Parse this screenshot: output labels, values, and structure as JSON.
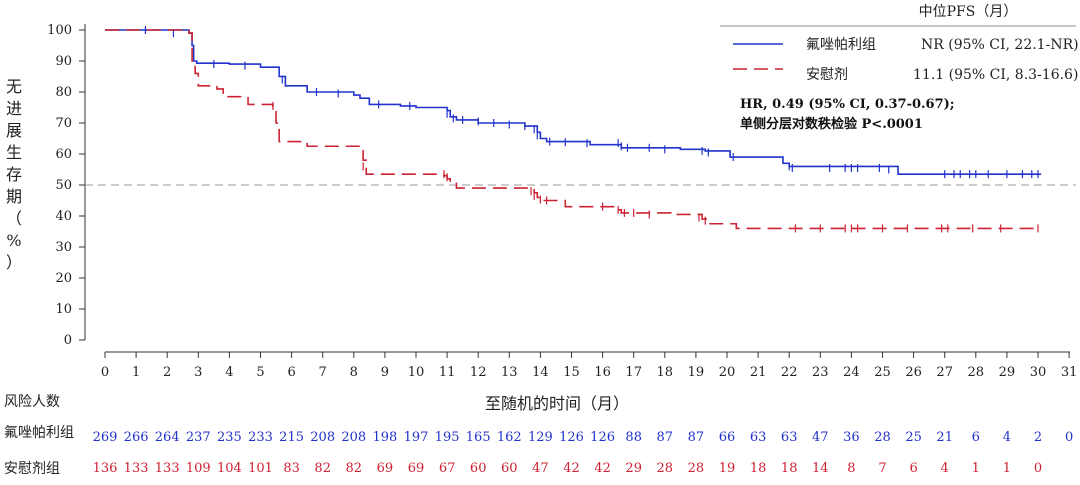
{
  "colors": {
    "treatment": "#2233cc",
    "placebo": "#cc2233",
    "ref_line": "#999999",
    "axis": "#333333"
  },
  "legend": {
    "header": "中位PFS（月）",
    "items": [
      {
        "label": "氟唑帕利组",
        "stat": "NR (95% CI, 22.1-NR)",
        "style": "solid",
        "color": "#2233cc"
      },
      {
        "label": "安慰剂",
        "stat": "11.1 (95% CI, 8.3-16.6)",
        "style": "dashed",
        "color": "#cc2233"
      }
    ]
  },
  "annotation": {
    "line1": "HR, 0.49 (95% CI, 0.37-0.67);",
    "line2": "单侧分层对数秩检验  P<.0001"
  },
  "risk_table": {
    "title": "风险人数",
    "rows": [
      {
        "label": "氟唑帕利组",
        "color": "#2233cc",
        "values": [
          "269",
          "266",
          "264",
          "237",
          "235",
          "233",
          "215",
          "208",
          "208",
          "198",
          "197",
          "195",
          "165",
          "162",
          "129",
          "126",
          "126",
          "88",
          "87",
          "87",
          "66",
          "63",
          "63",
          "47",
          "36",
          "28",
          "25",
          "21",
          "6",
          "4",
          "2",
          "0"
        ]
      },
      {
        "label": "安慰剂组",
        "color": "#cc2233",
        "values": [
          "136",
          "133",
          "133",
          "109",
          "104",
          "101",
          "83",
          "82",
          "82",
          "69",
          "69",
          "67",
          "60",
          "60",
          "47",
          "42",
          "42",
          "29",
          "28",
          "28",
          "19",
          "18",
          "18",
          "14",
          "8",
          "7",
          "6",
          "4",
          "1",
          "1",
          "0"
        ]
      }
    ]
  },
  "chart_data": {
    "type": "line",
    "title": "",
    "xlabel": "至随机的时间（月）",
    "ylabel": "无进展生存期（%）",
    "xlim": [
      0,
      31
    ],
    "ylim": [
      0,
      100
    ],
    "x_ticks": [
      0,
      1,
      2,
      3,
      4,
      5,
      6,
      7,
      8,
      9,
      10,
      11,
      12,
      13,
      14,
      15,
      16,
      17,
      18,
      19,
      20,
      21,
      22,
      23,
      24,
      25,
      26,
      27,
      28,
      29,
      30,
      31
    ],
    "y_ticks": [
      0,
      10,
      20,
      30,
      40,
      50,
      60,
      70,
      80,
      90,
      100
    ],
    "reference_line_y": 50,
    "series": [
      {
        "name": "氟唑帕利组",
        "style": "step",
        "dash": "solid",
        "points": [
          [
            0,
            100
          ],
          [
            2.7,
            99
          ],
          [
            2.8,
            95
          ],
          [
            2.85,
            90
          ],
          [
            2.95,
            89.3
          ],
          [
            4,
            89
          ],
          [
            5,
            88
          ],
          [
            5.6,
            85
          ],
          [
            5.8,
            82
          ],
          [
            6.5,
            80
          ],
          [
            8.0,
            79
          ],
          [
            8.2,
            78
          ],
          [
            8.5,
            76
          ],
          [
            9.5,
            75.5
          ],
          [
            10.0,
            75
          ],
          [
            11.0,
            74
          ],
          [
            11.1,
            72
          ],
          [
            11.3,
            71
          ],
          [
            12.0,
            70
          ],
          [
            13.5,
            69
          ],
          [
            13.9,
            67
          ],
          [
            14.0,
            65
          ],
          [
            14.2,
            64
          ],
          [
            15.6,
            63
          ],
          [
            16.6,
            62
          ],
          [
            18.5,
            61.5
          ],
          [
            19.3,
            61
          ],
          [
            20.1,
            59
          ],
          [
            21.8,
            57
          ],
          [
            22.0,
            56
          ],
          [
            25.5,
            53.5
          ],
          [
            30.1,
            53.5
          ]
        ],
        "censored": [
          [
            1.3,
            100
          ],
          [
            2.2,
            99
          ],
          [
            3.5,
            89
          ],
          [
            4.5,
            88.5
          ],
          [
            5.7,
            84
          ],
          [
            6.8,
            80
          ],
          [
            7.5,
            79.5
          ],
          [
            8.8,
            76
          ],
          [
            9.8,
            75.5
          ],
          [
            11.0,
            73
          ],
          [
            11.2,
            71.5
          ],
          [
            11.5,
            71
          ],
          [
            12.0,
            70.5
          ],
          [
            12.5,
            70
          ],
          [
            13.0,
            69.5
          ],
          [
            13.5,
            69
          ],
          [
            13.8,
            68
          ],
          [
            13.9,
            66
          ],
          [
            14.3,
            64
          ],
          [
            14.8,
            63.8
          ],
          [
            15.5,
            63.5
          ],
          [
            16.5,
            63.5
          ],
          [
            16.6,
            62.5
          ],
          [
            16.8,
            62
          ],
          [
            17.5,
            62
          ],
          [
            18.0,
            61.5
          ],
          [
            19.2,
            61
          ],
          [
            19.4,
            60.5
          ],
          [
            20.2,
            59
          ],
          [
            22.0,
            56
          ],
          [
            22.1,
            55.5
          ],
          [
            23.3,
            55.5
          ],
          [
            23.8,
            55.5
          ],
          [
            24.0,
            55.5
          ],
          [
            24.2,
            55.5
          ],
          [
            24.9,
            55.5
          ],
          [
            25.2,
            55
          ],
          [
            27.0,
            53.5
          ],
          [
            27.3,
            53.5
          ],
          [
            27.5,
            53.5
          ],
          [
            27.8,
            53.5
          ],
          [
            28.0,
            53.5
          ],
          [
            28.4,
            53.5
          ],
          [
            29.0,
            53.5
          ],
          [
            29.5,
            53.5
          ],
          [
            29.8,
            53.5
          ],
          [
            30.0,
            53.5
          ]
        ]
      },
      {
        "name": "安慰剂",
        "style": "step",
        "dash": "dashed",
        "points": [
          [
            0,
            100
          ],
          [
            2.7,
            99
          ],
          [
            2.8,
            90
          ],
          [
            2.9,
            86
          ],
          [
            3.0,
            82
          ],
          [
            3.6,
            81
          ],
          [
            3.8,
            78.5
          ],
          [
            4.6,
            76
          ],
          [
            5.4,
            74
          ],
          [
            5.5,
            70
          ],
          [
            5.6,
            64
          ],
          [
            6.5,
            62.5
          ],
          [
            8.2,
            62
          ],
          [
            8.3,
            58
          ],
          [
            8.4,
            53.5
          ],
          [
            10.9,
            53
          ],
          [
            11.0,
            52
          ],
          [
            11.1,
            50.5
          ],
          [
            11.3,
            49
          ],
          [
            13.8,
            47.5
          ],
          [
            13.9,
            46
          ],
          [
            14.0,
            45
          ],
          [
            14.8,
            43
          ],
          [
            16.5,
            42
          ],
          [
            16.6,
            41
          ],
          [
            18.2,
            40.5
          ],
          [
            19.2,
            39
          ],
          [
            19.4,
            37.5
          ],
          [
            20.3,
            36
          ],
          [
            30.0,
            35.8
          ]
        ],
        "censored": [
          [
            5.4,
            75.5
          ],
          [
            8.3,
            56
          ],
          [
            10.9,
            53.5
          ],
          [
            11.0,
            52.5
          ],
          [
            13.7,
            48
          ],
          [
            13.8,
            46.5
          ],
          [
            14.0,
            45.3
          ],
          [
            14.2,
            45
          ],
          [
            16.0,
            43
          ],
          [
            16.5,
            42
          ],
          [
            16.7,
            41
          ],
          [
            17.0,
            41
          ],
          [
            17.5,
            40.5
          ],
          [
            19.1,
            39.5
          ],
          [
            19.3,
            38.5
          ],
          [
            22.2,
            36
          ],
          [
            23.0,
            36
          ],
          [
            23.8,
            36
          ],
          [
            24.0,
            36
          ],
          [
            24.2,
            36
          ],
          [
            25.0,
            36
          ],
          [
            25.8,
            36
          ],
          [
            26.9,
            36
          ],
          [
            27.1,
            36
          ],
          [
            27.9,
            36
          ],
          [
            28.8,
            36
          ],
          [
            30.0,
            36
          ]
        ]
      }
    ]
  }
}
